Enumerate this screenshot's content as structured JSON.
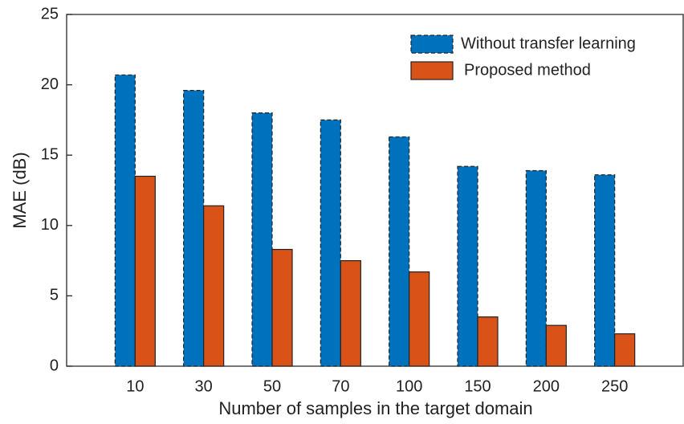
{
  "chart_data": {
    "type": "bar",
    "x_label": "Number of samples in the target domain",
    "y_label": "MAE (dB)",
    "categories": [
      "10",
      "30",
      "50",
      "70",
      "100",
      "150",
      "200",
      "250"
    ],
    "series": [
      {
        "name": "Without transfer learning",
        "color": "#0072bd",
        "values": [
          20.7,
          19.6,
          18.0,
          17.5,
          16.3,
          14.2,
          13.9,
          13.6
        ]
      },
      {
        "name": "Proposed method",
        "color": "#d95319",
        "values": [
          13.5,
          11.4,
          8.3,
          7.5,
          6.7,
          3.5,
          2.9,
          2.3
        ]
      }
    ],
    "ylim": [
      0,
      25
    ],
    "yticks": [
      0,
      5,
      10,
      15,
      20,
      25
    ],
    "legend": "northeast",
    "grid": false
  }
}
